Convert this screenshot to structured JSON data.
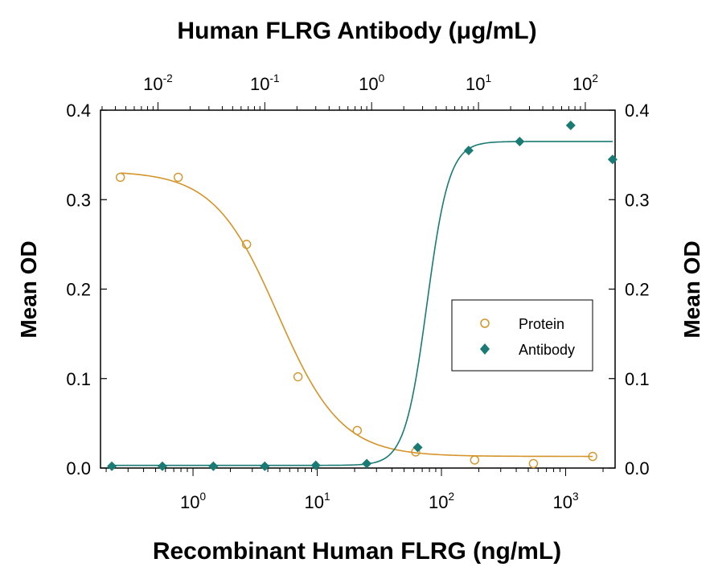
{
  "chart_data": {
    "type": "scatter",
    "title": "Human FLRG Antibody (μg/mL)",
    "xlabel": "Recombinant Human FLRG (ng/mL)",
    "ylabel_left": "Mean OD",
    "ylabel_right": "Mean OD",
    "x_scale": "log",
    "xlim": [
      0.18,
      2500
    ],
    "ylim": [
      0,
      0.4
    ],
    "yticks": [
      "0.0",
      "0.1",
      "0.2",
      "0.3",
      "0.4"
    ],
    "xticks_bottom": [
      {
        "base": "10",
        "exp": "0",
        "value": 1
      },
      {
        "base": "10",
        "exp": "1",
        "value": 10
      },
      {
        "base": "10",
        "exp": "2",
        "value": 100
      },
      {
        "base": "10",
        "exp": "3",
        "value": 1000
      }
    ],
    "top_axis": {
      "x_scale": "log",
      "xlim": [
        0.0029,
        190
      ],
      "xticks": [
        {
          "base": "10",
          "exp": "-2",
          "value": 0.01
        },
        {
          "base": "10",
          "exp": "-1",
          "value": 0.1
        },
        {
          "base": "10",
          "exp": "0",
          "value": 1
        },
        {
          "base": "10",
          "exp": "1",
          "value": 10
        },
        {
          "base": "10",
          "exp": "2",
          "value": 100
        }
      ]
    },
    "legend_position": "middle-right",
    "series": [
      {
        "name": "Protein",
        "axis": "bottom",
        "marker": "open-circle",
        "color": "#d4942a",
        "x": [
          0.26,
          0.76,
          2.7,
          7.0,
          21,
          62,
          185,
          550,
          1650
        ],
        "y": [
          0.325,
          0.325,
          0.25,
          0.102,
          0.042,
          0.018,
          0.009,
          0.005,
          0.013
        ],
        "fit": {
          "model": "4PL",
          "top": 0.332,
          "bottom": 0.013,
          "ec50": 4.8,
          "hill": 1.7
        }
      },
      {
        "name": "Antibody",
        "axis": "top",
        "marker": "filled-diamond",
        "color": "#1a7a74",
        "x": [
          0.0037,
          0.011,
          0.033,
          0.1,
          0.3,
          0.9,
          2.7,
          8.1,
          24.3,
          73
        ],
        "y": [
          0.002,
          0.002,
          0.002,
          0.002,
          0.003,
          0.005,
          0.023,
          0.355,
          0.365,
          0.383
        ],
        "y_last": 0.345,
        "x_last": 180,
        "fit": {
          "model": "4PL",
          "top": 0.365,
          "bottom": 0.003,
          "ec50": 3.3,
          "hill": 4.2
        }
      }
    ]
  }
}
